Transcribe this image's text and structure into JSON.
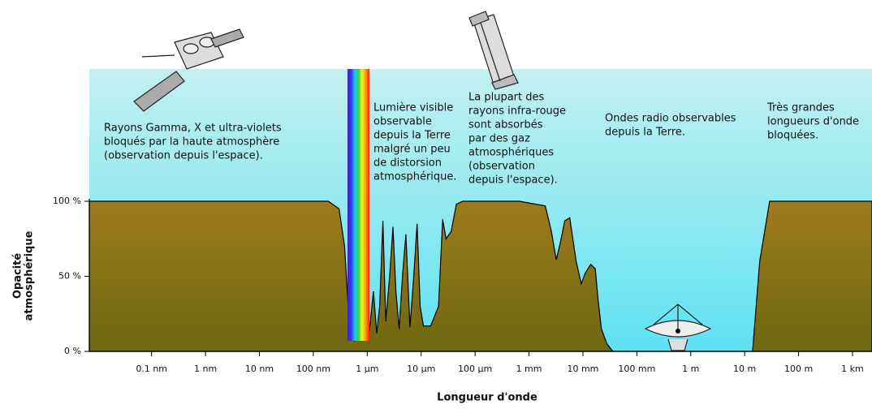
{
  "chart_data": {
    "type": "area",
    "xlabel": "Longueur d'onde",
    "ylabel_lines": [
      "Opacité",
      "atmosphérique"
    ],
    "xscale": "log",
    "xlim": [
      7e-12,
      2300
    ],
    "ylim": [
      0,
      100
    ],
    "xticks": [
      {
        "value": 1e-10,
        "label": "0.1 nm"
      },
      {
        "value": 1e-09,
        "label": "1 nm"
      },
      {
        "value": 1e-08,
        "label": "10 nm"
      },
      {
        "value": 1e-07,
        "label": "100 nm"
      },
      {
        "value": 1e-06,
        "label": "1 µm"
      },
      {
        "value": 1e-05,
        "label": "10 µm"
      },
      {
        "value": 0.0001,
        "label": "100 µm"
      },
      {
        "value": 0.001,
        "label": "1 mm"
      },
      {
        "value": 0.01,
        "label": "10 mm"
      },
      {
        "value": 0.1,
        "label": "100 mm"
      },
      {
        "value": 1,
        "label": "1 m"
      },
      {
        "value": 10,
        "label": "10 m"
      },
      {
        "value": 100,
        "label": "100 m"
      },
      {
        "value": 1000,
        "label": "1 km"
      }
    ],
    "yticks": [
      {
        "value": 0,
        "label": "0 %"
      },
      {
        "value": 50,
        "label": "50 %"
      },
      {
        "value": 100,
        "label": "100 %"
      }
    ],
    "color": "#8a7016",
    "x": [
      7e-12,
      1.9e-07,
      3e-07,
      3.8e-07,
      4.6e-07,
      5.8e-07,
      7.4e-07,
      8.5e-07,
      9.8e-07,
      1.1e-06,
      1.3e-06,
      1.5e-06,
      1.7e-06,
      1.95e-06,
      2.2e-06,
      2.6e-06,
      3e-06,
      3.4e-06,
      3.9e-06,
      4.5e-06,
      5.2e-06,
      6.2e-06,
      7.3e-06,
      8.4e-06,
      9.6e-06,
      1.1e-05,
      1.5e-05,
      2.1e-05,
      2.5e-05,
      2.9e-05,
      3.6e-05,
      4.5e-05,
      5.9e-05,
      0.00017,
      0.00066,
      0.002,
      0.0026,
      0.0032,
      0.0038,
      0.0046,
      0.0057,
      0.0075,
      0.0093,
      0.011,
      0.014,
      0.017,
      0.019,
      0.022,
      0.028,
      0.036,
      14,
      19,
      29,
      2300
    ],
    "values": [
      100,
      100,
      95,
      70,
      20,
      7,
      10,
      25,
      12,
      14,
      40,
      12,
      30,
      87,
      20,
      50,
      83,
      40,
      15,
      50,
      78,
      16,
      50,
      85,
      30,
      17,
      17,
      30,
      88,
      75,
      80,
      98,
      100,
      100,
      100,
      97,
      80,
      61,
      72,
      87,
      89,
      60,
      45,
      52,
      58,
      55,
      35,
      15,
      5,
      0,
      0,
      60,
      100,
      100
    ],
    "annotations": [
      {
        "lines": [
          "Rayons Gamma, X et ultra-violets",
          "bloqués par la haute atmosphère",
          "(observation depuis l'espace)."
        ]
      },
      {
        "lines": [
          "Lumière visible",
          "observable",
          "depuis la Terre",
          "malgré un peu",
          "de distorsion",
          "atmosphérique."
        ]
      },
      {
        "lines": [
          "La plupart des",
          "rayons infra-rouge",
          "sont absorbés",
          "par des gaz",
          "atmosphériques",
          "(observation",
          "depuis l'espace)."
        ]
      },
      {
        "lines": [
          "Ondes radio observables",
          "depuis la Terre."
        ]
      },
      {
        "lines": [
          "Très grandes",
          "longueurs d'onde",
          "bloquées."
        ]
      }
    ]
  }
}
